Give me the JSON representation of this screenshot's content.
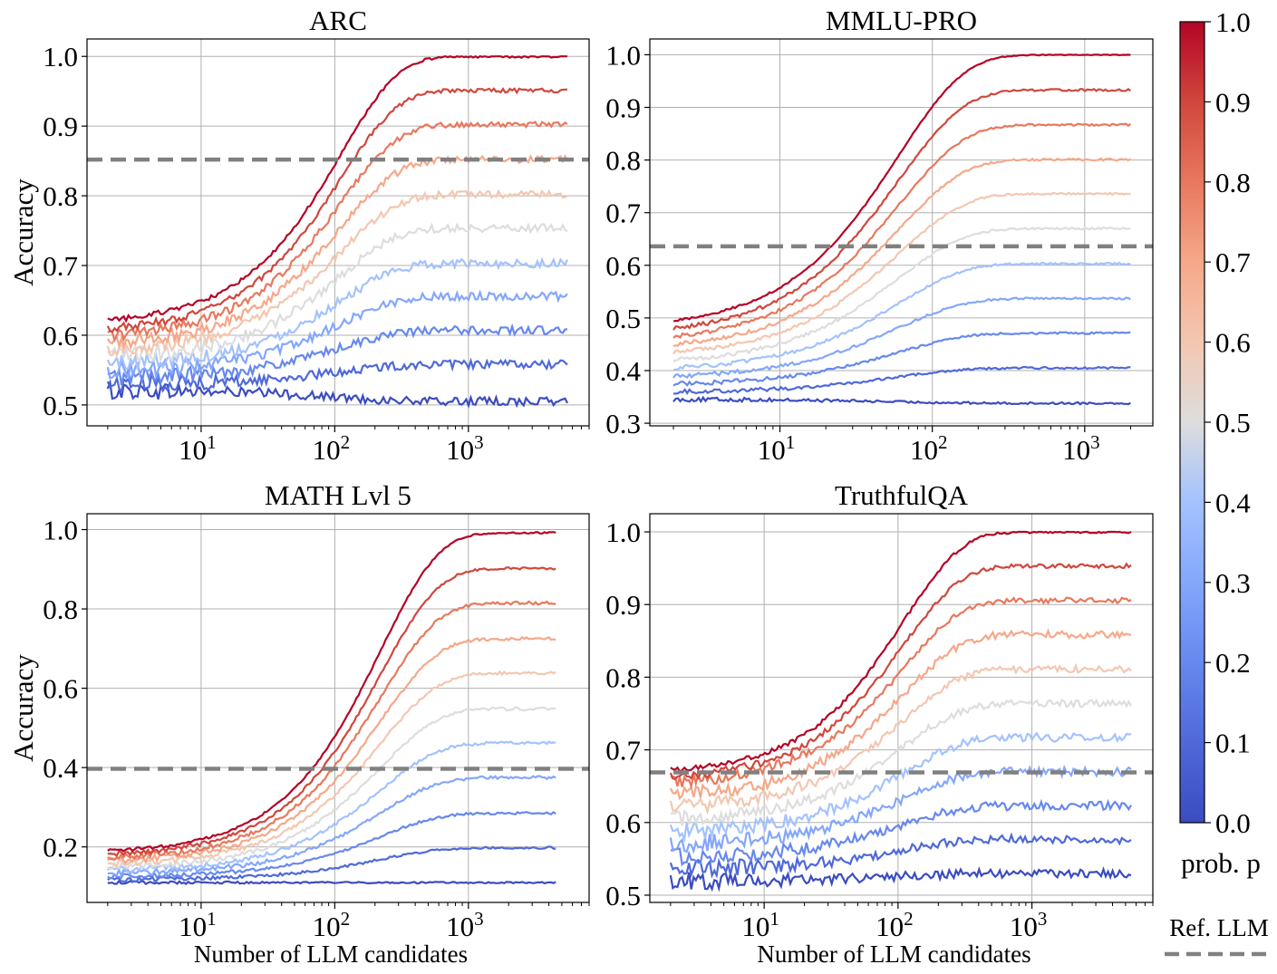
{
  "figure": {
    "colorbar_label": "prob. p",
    "colorbar_ticks": [
      "0.0",
      "0.1",
      "0.2",
      "0.3",
      "0.4",
      "0.5",
      "0.6",
      "0.7",
      "0.8",
      "0.9",
      "1.0"
    ],
    "legend_label": "Ref. LLM",
    "colormap": [
      "#3b4cc0",
      "#f7f7f7",
      "#b40426"
    ],
    "ref_line_color": "#808080",
    "grid_color": "#b0b0b0"
  },
  "chart_data": [
    {
      "type": "line",
      "title": "ARC",
      "xlabel": "",
      "ylabel": "Accuracy",
      "xscale": "log",
      "xlim": [
        1.4,
        8000
      ],
      "ylim": [
        0.47,
        1.025
      ],
      "yticks": [
        "0.5",
        "0.6",
        "0.7",
        "0.8",
        "0.9",
        "1.0"
      ],
      "xticks": [
        {
          "base": "10",
          "exp": "1"
        },
        {
          "base": "10",
          "exp": "2"
        },
        {
          "base": "10",
          "exp": "3"
        }
      ],
      "x_range": [
        2,
        5500
      ],
      "ref_llm_accuracy": 0.852,
      "series": [
        {
          "name": "p=0.0",
          "p": 0.0,
          "start": 0.52,
          "end": 0.505,
          "noise": 0.006
        },
        {
          "name": "p=0.1",
          "p": 0.1,
          "start": 0.53,
          "end": 0.558,
          "noise": 0.006
        },
        {
          "name": "p=0.2",
          "p": 0.2,
          "start": 0.54,
          "end": 0.607,
          "noise": 0.006
        },
        {
          "name": "p=0.3",
          "p": 0.3,
          "start": 0.55,
          "end": 0.656,
          "noise": 0.006
        },
        {
          "name": "p=0.4",
          "p": 0.4,
          "start": 0.56,
          "end": 0.703,
          "noise": 0.006
        },
        {
          "name": "p=0.5",
          "p": 0.5,
          "start": 0.57,
          "end": 0.754,
          "noise": 0.006
        },
        {
          "name": "p=0.6",
          "p": 0.6,
          "start": 0.58,
          "end": 0.802,
          "noise": 0.005
        },
        {
          "name": "p=0.7",
          "p": 0.7,
          "start": 0.59,
          "end": 0.852,
          "noise": 0.005
        },
        {
          "name": "p=0.8",
          "p": 0.8,
          "start": 0.6,
          "end": 0.902,
          "noise": 0.004
        },
        {
          "name": "p=0.9",
          "p": 0.9,
          "start": 0.61,
          "end": 0.951,
          "noise": 0.003
        },
        {
          "name": "p=1.0",
          "p": 1.0,
          "start": 0.622,
          "end": 1.0,
          "noise": 0.002
        }
      ]
    },
    {
      "type": "line",
      "title": "MMLU-PRO",
      "xlabel": "",
      "ylabel": "",
      "xscale": "log",
      "xlim": [
        1.4,
        2800
      ],
      "ylim": [
        0.295,
        1.03
      ],
      "yticks": [
        "0.3",
        "0.4",
        "0.5",
        "0.6",
        "0.7",
        "0.8",
        "0.9",
        "1.0"
      ],
      "xticks": [
        {
          "base": "10",
          "exp": "1"
        },
        {
          "base": "10",
          "exp": "2"
        },
        {
          "base": "10",
          "exp": "3"
        }
      ],
      "x_range": [
        2,
        2000
      ],
      "ref_llm_accuracy": 0.636,
      "series": [
        {
          "name": "p=0.0",
          "p": 0.0,
          "start": 0.345,
          "end": 0.338,
          "noise": 0.002
        },
        {
          "name": "p=0.1",
          "p": 0.1,
          "start": 0.36,
          "end": 0.405,
          "noise": 0.002
        },
        {
          "name": "p=0.2",
          "p": 0.2,
          "start": 0.375,
          "end": 0.471,
          "noise": 0.002
        },
        {
          "name": "p=0.3",
          "p": 0.3,
          "start": 0.39,
          "end": 0.537,
          "noise": 0.002
        },
        {
          "name": "p=0.4",
          "p": 0.4,
          "start": 0.405,
          "end": 0.603,
          "noise": 0.002
        },
        {
          "name": "p=0.5",
          "p": 0.5,
          "start": 0.42,
          "end": 0.67,
          "noise": 0.002
        },
        {
          "name": "p=0.6",
          "p": 0.6,
          "start": 0.435,
          "end": 0.736,
          "noise": 0.002
        },
        {
          "name": "p=0.7",
          "p": 0.7,
          "start": 0.45,
          "end": 0.801,
          "noise": 0.002
        },
        {
          "name": "p=0.8",
          "p": 0.8,
          "start": 0.465,
          "end": 0.867,
          "noise": 0.002
        },
        {
          "name": "p=0.9",
          "p": 0.9,
          "start": 0.48,
          "end": 0.933,
          "noise": 0.002
        },
        {
          "name": "p=1.0",
          "p": 1.0,
          "start": 0.495,
          "end": 1.0,
          "noise": 0.001
        }
      ]
    },
    {
      "type": "line",
      "title": "MATH Lvl 5",
      "xlabel": "Number of LLM candidates",
      "ylabel": "Accuracy",
      "xscale": "log",
      "xlim": [
        1.4,
        8000
      ],
      "ylim": [
        0.06,
        1.04
      ],
      "yticks": [
        "0.2",
        "0.4",
        "0.6",
        "0.8",
        "1.0"
      ],
      "xticks": [
        {
          "base": "10",
          "exp": "1"
        },
        {
          "base": "10",
          "exp": "2"
        },
        {
          "base": "10",
          "exp": "3"
        }
      ],
      "x_range": [
        2,
        4500
      ],
      "ref_llm_accuracy": 0.397,
      "series": [
        {
          "name": "p=0.0",
          "p": 0.0,
          "start": 0.11,
          "end": 0.11,
          "noise": 0.002
        },
        {
          "name": "p=0.1",
          "p": 0.1,
          "start": 0.118,
          "end": 0.198,
          "noise": 0.003
        },
        {
          "name": "p=0.2",
          "p": 0.2,
          "start": 0.126,
          "end": 0.285,
          "noise": 0.003
        },
        {
          "name": "p=0.3",
          "p": 0.3,
          "start": 0.134,
          "end": 0.375,
          "noise": 0.004
        },
        {
          "name": "p=0.4",
          "p": 0.4,
          "start": 0.142,
          "end": 0.462,
          "noise": 0.004
        },
        {
          "name": "p=0.5",
          "p": 0.5,
          "start": 0.15,
          "end": 0.548,
          "noise": 0.004
        },
        {
          "name": "p=0.6",
          "p": 0.6,
          "start": 0.158,
          "end": 0.638,
          "noise": 0.004
        },
        {
          "name": "p=0.7",
          "p": 0.7,
          "start": 0.166,
          "end": 0.725,
          "noise": 0.004
        },
        {
          "name": "p=0.8",
          "p": 0.8,
          "start": 0.174,
          "end": 0.815,
          "noise": 0.004
        },
        {
          "name": "p=0.9",
          "p": 0.9,
          "start": 0.182,
          "end": 0.902,
          "noise": 0.003
        },
        {
          "name": "p=1.0",
          "p": 1.0,
          "start": 0.19,
          "end": 0.992,
          "noise": 0.002
        }
      ]
    },
    {
      "type": "line",
      "title": "TruthfulQA",
      "xlabel": "Number of LLM candidates",
      "ylabel": "",
      "xscale": "log",
      "xlim": [
        1.4,
        8000
      ],
      "ylim": [
        0.49,
        1.025
      ],
      "yticks": [
        "0.5",
        "0.6",
        "0.7",
        "0.8",
        "0.9",
        "1.0"
      ],
      "xticks": [
        {
          "base": "10",
          "exp": "1"
        },
        {
          "base": "10",
          "exp": "2"
        },
        {
          "base": "10",
          "exp": "3"
        }
      ],
      "x_range": [
        2,
        5500
      ],
      "ref_llm_accuracy": 0.669,
      "series": [
        {
          "name": "p=0.0",
          "p": 0.0,
          "start": 0.52,
          "end": 0.53,
          "noise": 0.006
        },
        {
          "name": "p=0.1",
          "p": 0.1,
          "start": 0.537,
          "end": 0.577,
          "noise": 0.006
        },
        {
          "name": "p=0.2",
          "p": 0.2,
          "start": 0.554,
          "end": 0.623,
          "noise": 0.006
        },
        {
          "name": "p=0.3",
          "p": 0.3,
          "start": 0.571,
          "end": 0.67,
          "noise": 0.006
        },
        {
          "name": "p=0.4",
          "p": 0.4,
          "start": 0.588,
          "end": 0.717,
          "noise": 0.006
        },
        {
          "name": "p=0.5",
          "p": 0.5,
          "start": 0.605,
          "end": 0.764,
          "noise": 0.005
        },
        {
          "name": "p=0.6",
          "p": 0.6,
          "start": 0.622,
          "end": 0.811,
          "noise": 0.005
        },
        {
          "name": "p=0.7",
          "p": 0.7,
          "start": 0.639,
          "end": 0.859,
          "noise": 0.005
        },
        {
          "name": "p=0.8",
          "p": 0.8,
          "start": 0.656,
          "end": 0.906,
          "noise": 0.004
        },
        {
          "name": "p=0.9",
          "p": 0.9,
          "start": 0.663,
          "end": 0.953,
          "noise": 0.003
        },
        {
          "name": "p=1.0",
          "p": 1.0,
          "start": 0.672,
          "end": 1.0,
          "noise": 0.002
        }
      ]
    }
  ]
}
